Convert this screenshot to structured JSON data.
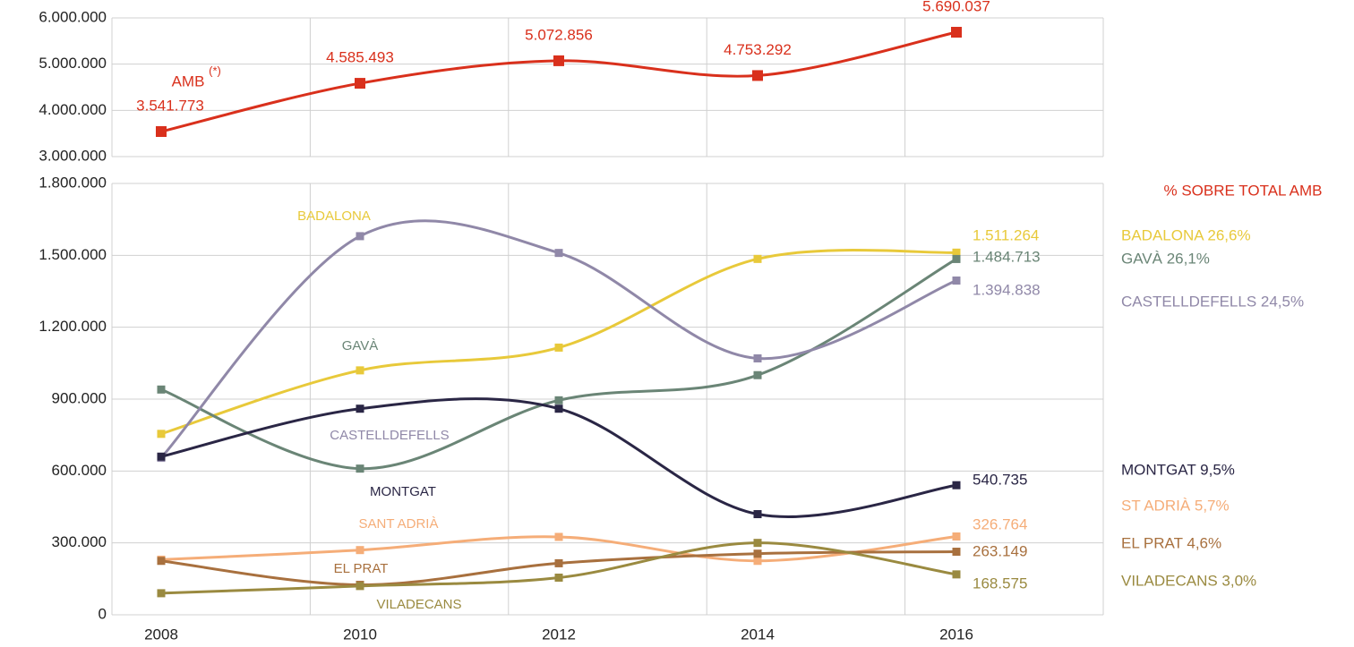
{
  "chart_data": [
    {
      "type": "line",
      "categories": [
        "2008",
        "2010",
        "2012",
        "2014",
        "2016"
      ],
      "ylim": [
        3000000,
        6000000
      ],
      "yticks": [
        {
          "value": 3000000,
          "label": "3.000.000"
        },
        {
          "value": 4000000,
          "label": "4.000.000"
        },
        {
          "value": 5000000,
          "label": "5.000.000"
        },
        {
          "value": 6000000,
          "label": "6.000.000"
        }
      ],
      "grid": true,
      "annotations": [
        "AMB",
        "(*)"
      ],
      "series": [
        {
          "name": "AMB",
          "color": "#d9301c",
          "values": [
            3541773,
            4585493,
            5072856,
            4753292,
            5690037
          ],
          "value_labels": [
            "3.541.773",
            "4.585.493",
            "5.072.856",
            "4.753.292",
            "5.690.037"
          ]
        }
      ]
    },
    {
      "type": "line",
      "categories": [
        "2008",
        "2010",
        "2012",
        "2014",
        "2016"
      ],
      "ylim": [
        0,
        1800000
      ],
      "yticks": [
        0,
        {
          "value": 300000,
          "label": "300.000"
        },
        {
          "value": 600000,
          "label": "600.000"
        },
        {
          "value": 900000,
          "label": "900.000"
        },
        {
          "value": 1200000,
          "label": "1.200.000"
        },
        {
          "value": 1500000,
          "label": "1.500.000"
        },
        {
          "value": 1800000,
          "label": "1.800.000"
        }
      ],
      "grid": true,
      "legend_title": "% SOBRE TOTAL AMB",
      "series": [
        {
          "name": "BADALONA",
          "color": "#e8c93a",
          "share": "BADALONA 26,6%",
          "values": [
            755000,
            1020000,
            1115000,
            1485000,
            1511264
          ],
          "value_labels": [
            null,
            null,
            null,
            null,
            "1.511.264"
          ]
        },
        {
          "name": "GAVÀ",
          "color": "#6a8576",
          "share": "GAVÀ 26,1%",
          "values": [
            940000,
            610000,
            895000,
            1000000,
            1484713
          ],
          "value_labels": [
            null,
            null,
            null,
            null,
            "1.484.713"
          ]
        },
        {
          "name": "CASTELLDEFELLS",
          "color": "#9088a8",
          "share": "CASTELLDEFELLS 24,5%",
          "values": [
            655000,
            1580000,
            1510000,
            1070000,
            1394838
          ],
          "value_labels": [
            null,
            null,
            null,
            null,
            "1.394.838"
          ]
        },
        {
          "name": "MONTGAT",
          "color": "#2a2645",
          "share": "MONTGAT 9,5%",
          "values": [
            660000,
            860000,
            860000,
            420000,
            540735
          ],
          "value_labels": [
            null,
            null,
            null,
            null,
            "540.735"
          ]
        },
        {
          "name": "SANT ADRIÀ",
          "color": "#f5ad78",
          "share": "ST ADRIÀ 5,7%",
          "values": [
            230000,
            270000,
            325000,
            225000,
            326764
          ],
          "value_labels": [
            null,
            null,
            null,
            null,
            "326.764"
          ]
        },
        {
          "name": "EL PRAT",
          "color": "#a8703e",
          "share": "EL PRAT 4,6%",
          "values": [
            225000,
            125000,
            215000,
            255000,
            263149
          ],
          "value_labels": [
            null,
            null,
            null,
            null,
            "263.149"
          ]
        },
        {
          "name": "VILADECANS",
          "color": "#9a8a40",
          "share": "VILADECANS 3,0%",
          "values": [
            90000,
            120000,
            155000,
            300000,
            168575
          ],
          "value_labels": [
            null,
            null,
            null,
            null,
            "168.575"
          ]
        }
      ]
    }
  ]
}
